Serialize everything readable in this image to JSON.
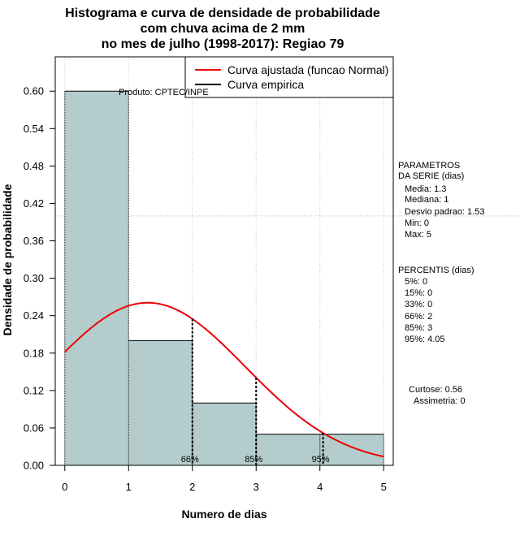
{
  "chart_data": {
    "type": "bar",
    "title_lines": [
      "Histograma e curva de densidade de probabilidade",
      "com chuva acima de 2 mm",
      "no mes de julho (1998-2017): Regiao 79"
    ],
    "xlabel": "Numero de dias",
    "ylabel": "Densidade de probabilidade",
    "xlim": [
      -0.15,
      5.15
    ],
    "ylim": [
      0,
      0.655
    ],
    "x_ticks": [
      0,
      1,
      2,
      3,
      4,
      5
    ],
    "y_ticks": [
      0.0,
      0.06,
      0.12,
      0.18,
      0.24,
      0.3,
      0.36,
      0.42,
      0.48,
      0.54,
      0.6
    ],
    "y_tick_labels": [
      "0.00",
      "0.06",
      "0.12",
      "0.18",
      "0.24",
      "0.30",
      "0.36",
      "0.42",
      "0.48",
      "0.54",
      "0.60"
    ],
    "bars": [
      {
        "x0": 0,
        "x1": 1,
        "value": 0.6
      },
      {
        "x0": 1,
        "x1": 2,
        "value": 0.2
      },
      {
        "x0": 2,
        "x1": 3,
        "value": 0.1
      },
      {
        "x0": 3,
        "x1": 4,
        "value": 0.05
      },
      {
        "x0": 4,
        "x1": 5,
        "value": 0.05
      }
    ],
    "normal_curve": {
      "mean": 1.3,
      "sd": 1.53,
      "color": "#ee0000"
    },
    "bar_fill": "#b4cccc",
    "gridline_y": 0.4,
    "percentile_lines": [
      {
        "x": 2.0,
        "label": "66%"
      },
      {
        "x": 3.0,
        "label": "85%"
      },
      {
        "x": 4.05,
        "label": "95%"
      }
    ],
    "legend": {
      "position": "top-right",
      "items": [
        {
          "label": "Curva ajustada (funcao Normal)",
          "color": "#ee0000"
        },
        {
          "label": "Curva empirica",
          "color": "#000000"
        }
      ]
    },
    "product_label": "Produto: CPTEC/INPE"
  },
  "side_panel": {
    "params_title_1": "PARAMETROS",
    "params_title_2": "DA SERIE (dias)",
    "media": "Media: 1.3",
    "mediana": "Mediana: 1",
    "desvio": "Desvio padrao: 1.53",
    "min": "Min: 0",
    "max": "Max: 5",
    "percentis_title": "PERCENTIS (dias)",
    "p5": "5%: 0",
    "p15": "15%: 0",
    "p33": "33%: 0",
    "p66": "66%: 2",
    "p85": "85%: 3",
    "p95": "95%: 4.05",
    "curtose": "Curtose: 0.56",
    "assimetria": "Assimetria: 0"
  }
}
